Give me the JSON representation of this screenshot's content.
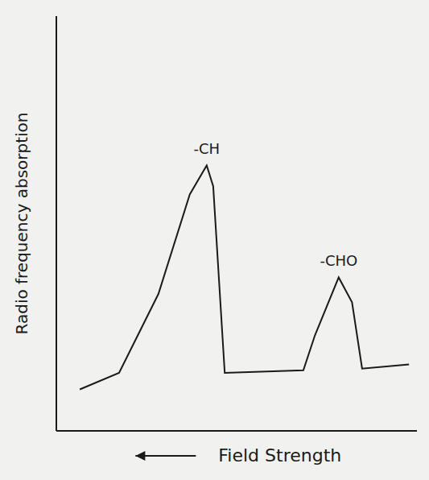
{
  "chart_data": {
    "type": "line",
    "x_label": "Field Strength",
    "y_label": "Radio frequency absorption",
    "x": [
      0.65,
      1.74,
      2.83,
      3.7,
      4.17,
      4.35,
      4.67,
      6.85,
      7.17,
      7.83,
      8.2,
      8.48,
      9.78
    ],
    "values": [
      1.0,
      1.4,
      3.3,
      5.7,
      6.4,
      5.9,
      1.4,
      1.46,
      2.3,
      3.7,
      3.1,
      1.5,
      1.6
    ],
    "xlim": [
      0,
      10
    ],
    "ylim": [
      0,
      10
    ],
    "tick_labels": false,
    "grid": false,
    "color": "#1a1a1a",
    "annotations": [
      {
        "text": "-CH",
        "x": 4.17,
        "y": 6.4
      },
      {
        "text": "-CHO",
        "x": 7.83,
        "y": 3.7
      }
    ]
  }
}
